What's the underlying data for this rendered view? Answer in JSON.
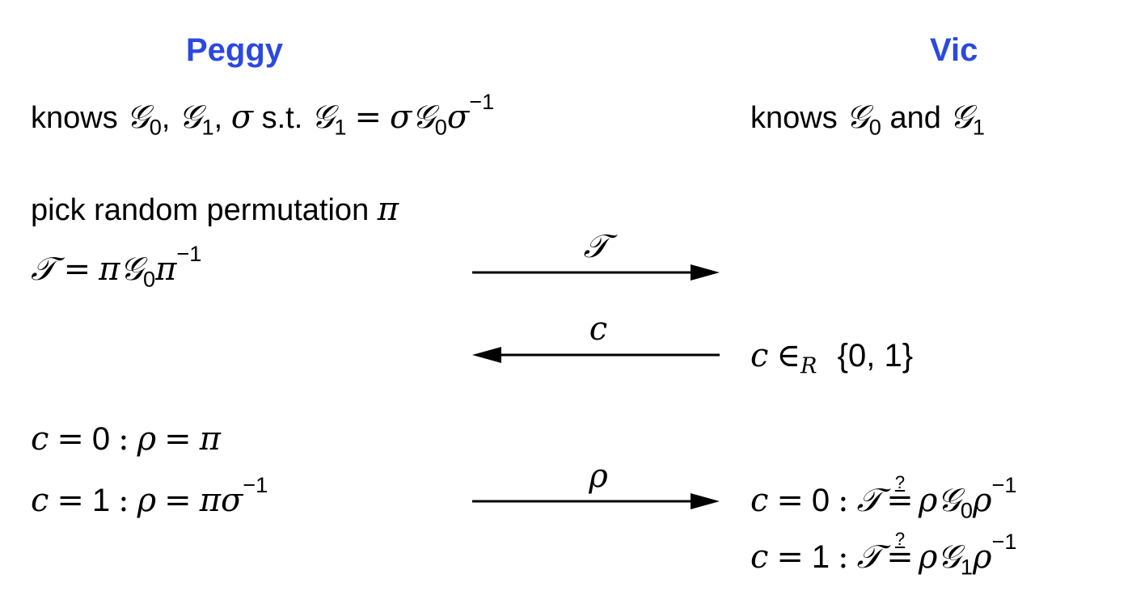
{
  "parties": {
    "left": "Peggy",
    "right": "Vic"
  },
  "peggy": {
    "knows_word": "knows",
    "comma": ",",
    "st": "s.t.",
    "pick": "pick random permutation",
    "pi": "π",
    "T": "𝒯",
    "G": "𝒢",
    "sigma": "σ",
    "sub0": "0",
    "sub1": "1",
    "inv": "−1",
    "c": "c",
    "rho": "ρ",
    "zero": "0",
    "one": "1",
    "eq": "=",
    "colon": ":"
  },
  "vic": {
    "knows_word": "knows",
    "and": "and",
    "in_r": "∈",
    "R": "R",
    "set": "{0, 1}",
    "check_q": "?"
  },
  "messages": {
    "m1": "𝒯",
    "m2": "c",
    "m3": "ρ"
  },
  "colors": {
    "party": "#2b49e0",
    "ink": "#000000"
  }
}
